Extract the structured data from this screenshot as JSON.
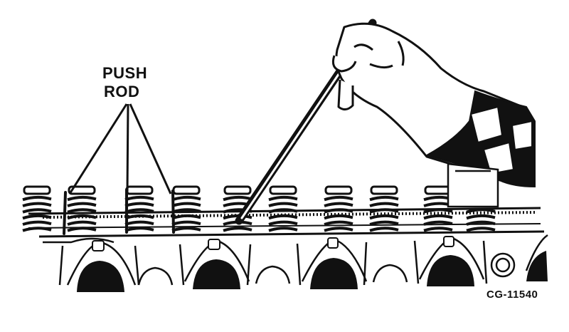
{
  "callout": {
    "line1": "PUSH",
    "line2": "ROD"
  },
  "figure_code": "CG-11540",
  "colors": {
    "ink": "#111111",
    "paper": "#ffffff"
  },
  "icons": [
    "hand-icon",
    "valve-spring-icon",
    "push-rod-icon",
    "pry-bar-icon"
  ]
}
